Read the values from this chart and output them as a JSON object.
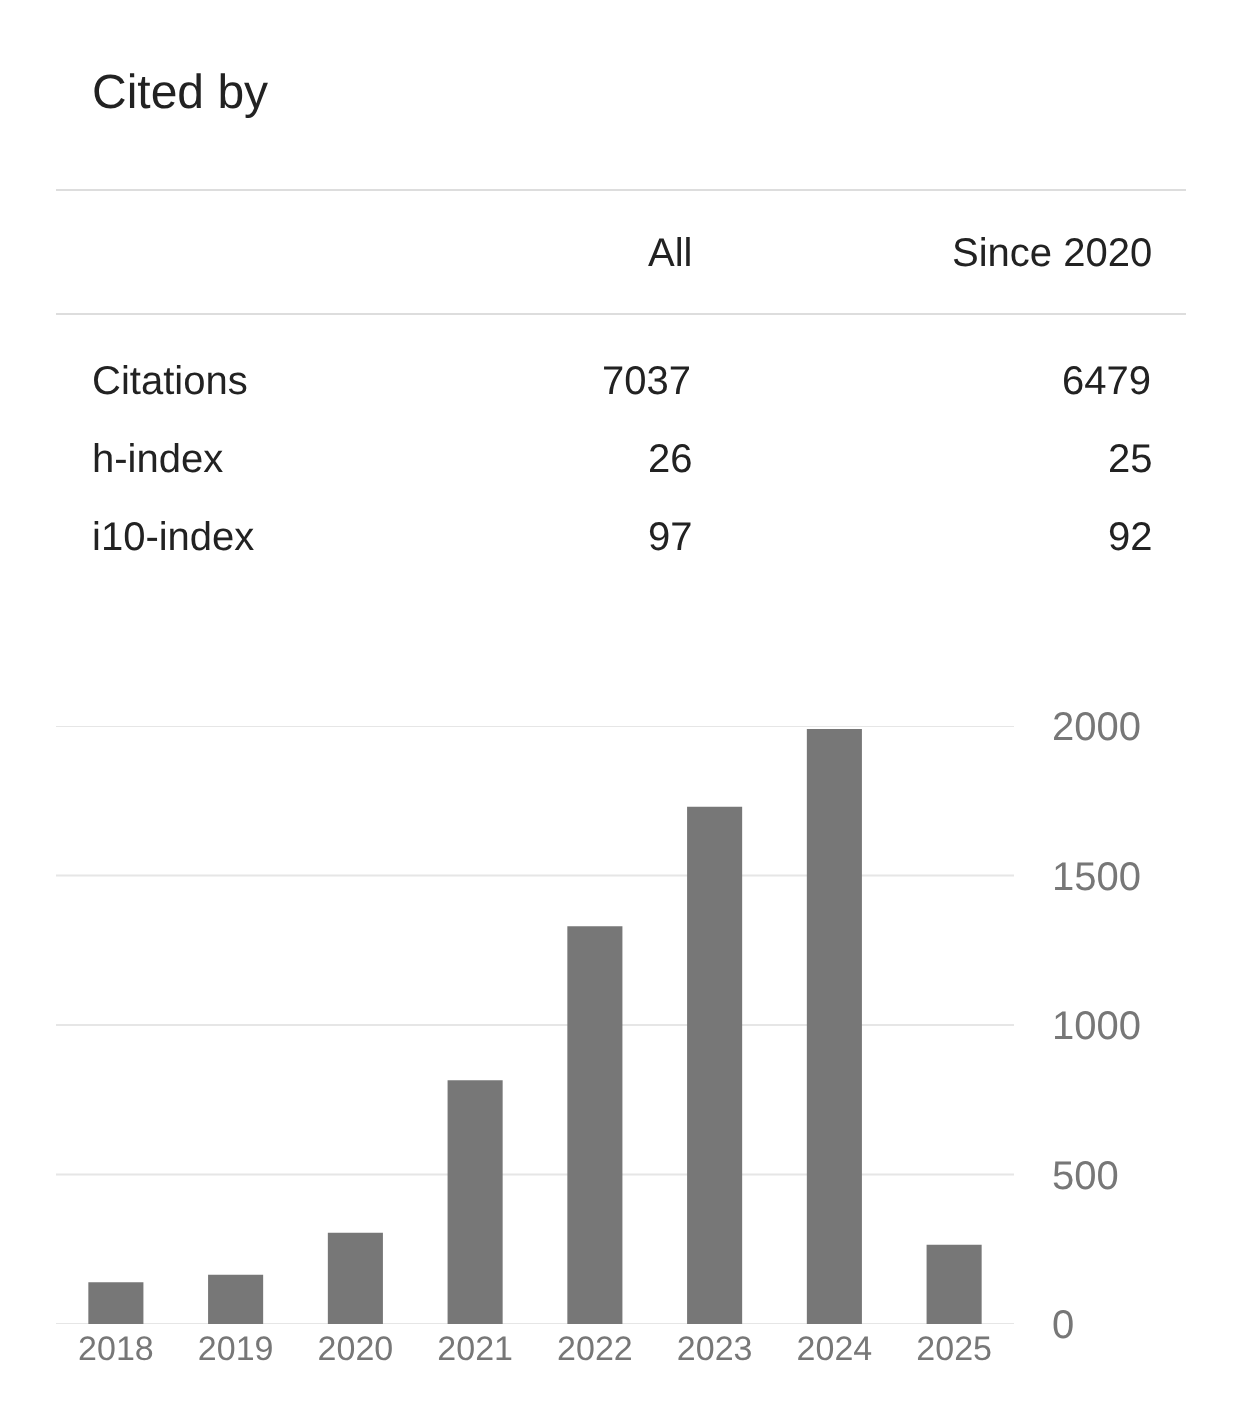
{
  "chart_data": [
    {
      "type": "other",
      "title": "Cited by",
      "annotations": [
        "All",
        "Since 2020",
        "Citations",
        "7037",
        "6479",
        "h-index",
        "26",
        "25",
        "i10-index",
        "97",
        "92"
      ]
    },
    {
      "type": "bar",
      "categories": [
        "2018",
        "2019",
        "2020",
        "2021",
        "2022",
        "2023",
        "2024",
        "2025"
      ],
      "values": [
        140,
        165,
        305,
        815,
        1330,
        1730,
        1990,
        265
      ],
      "color": "#777777",
      "ylim": [
        0,
        2000
      ],
      "yticks": [
        0,
        500,
        1000,
        1500,
        2000
      ],
      "grid": "y"
    }
  ]
}
